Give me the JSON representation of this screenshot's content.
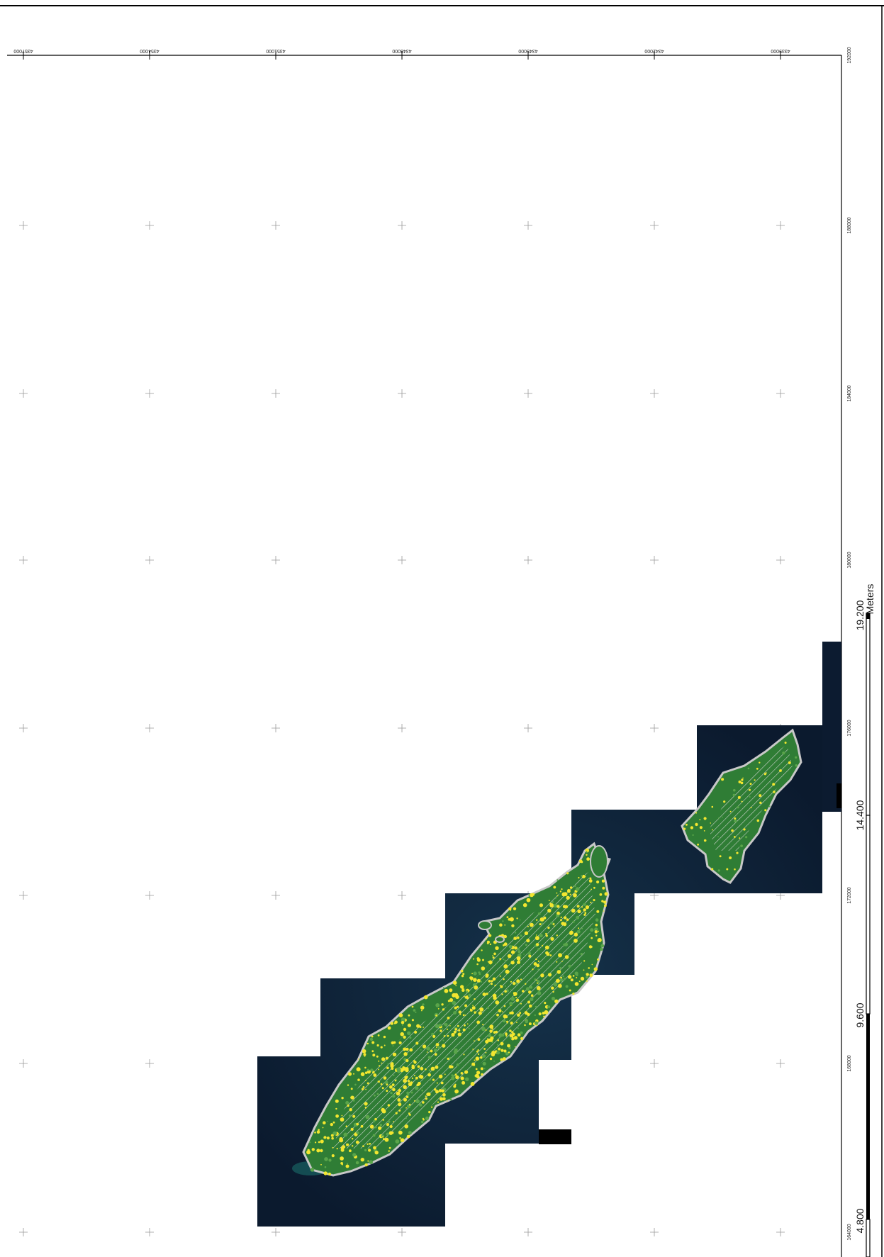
{
  "map": {
    "colors": {
      "frame": "#000000",
      "grid_cross": "#999999",
      "imagery_dark": "#0c1b30",
      "imagery_shallow": "#1b6e6a",
      "vegetation": "#2f7d35",
      "vegetation_light": "#5aa54a",
      "highlight": "#f2e630",
      "outline": "#c8c8c8",
      "hatch": "#d8d8d8"
    },
    "x_labels": [
      "4357000",
      "4354000",
      "4351000",
      "4348000",
      "4345000",
      "4342000",
      "4339000"
    ],
    "y_labels": [
      "192000",
      "188000",
      "184000",
      "180000",
      "176000",
      "172000",
      "168000",
      "164000"
    ]
  },
  "scale_bar": {
    "unit": "Meters",
    "labels": [
      "19.200",
      "14.400",
      "9.600",
      "4.800"
    ]
  }
}
